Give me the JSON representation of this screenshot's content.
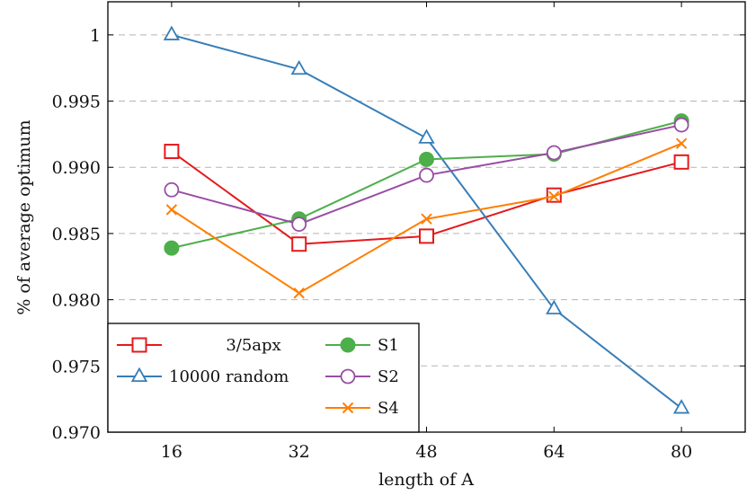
{
  "chart_data": {
    "type": "line",
    "xlabel": "length of A",
    "ylabel": "% of average optimum",
    "x": [
      16,
      32,
      48,
      64,
      80
    ],
    "xlim": [
      8,
      88
    ],
    "ylim": [
      0.97,
      1.0025
    ],
    "xticks": [
      16,
      32,
      48,
      64,
      80
    ],
    "xtick_labels": [
      "16",
      "32",
      "48",
      "64",
      "80"
    ],
    "yticks": [
      0.97,
      0.975,
      0.98,
      0.985,
      0.99,
      0.995,
      1.0
    ],
    "ytick_labels": [
      "0.970",
      "0.975",
      "0.980",
      "0.985",
      "0.990",
      "0.995",
      "1"
    ],
    "grid": "horizontal dashed",
    "legend_position": "bottom-left",
    "series": [
      {
        "name": "3/5apx",
        "color": "#e41a1c",
        "marker": "square",
        "values": [
          0.9912,
          0.9842,
          0.9848,
          0.9879,
          0.9904
        ]
      },
      {
        "name": "10000 random",
        "color": "#377eb8",
        "marker": "triangle",
        "values": [
          1.0,
          0.9974,
          0.9922,
          0.9793,
          0.9718
        ]
      },
      {
        "name": "S1",
        "color": "#4daf4a",
        "marker": "filled-circle",
        "values": [
          0.9839,
          0.9861,
          0.9906,
          0.991,
          0.9935
        ]
      },
      {
        "name": "S2",
        "color": "#984ea3",
        "marker": "circle",
        "values": [
          0.9883,
          0.9857,
          0.9894,
          0.9911,
          0.9932
        ]
      },
      {
        "name": "S4",
        "color": "#ff7f00",
        "marker": "x",
        "values": [
          0.9868,
          0.9805,
          0.9861,
          0.9878,
          0.9918
        ]
      }
    ]
  }
}
